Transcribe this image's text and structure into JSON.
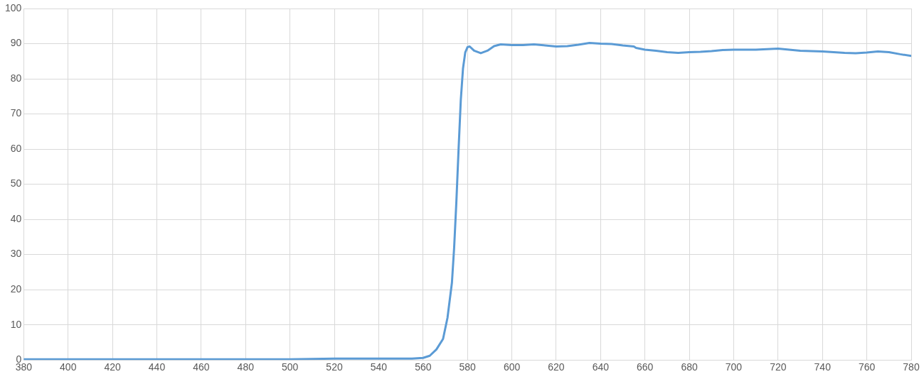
{
  "chart_data": {
    "type": "line",
    "xlim": [
      380,
      780
    ],
    "ylim": [
      0,
      100
    ],
    "xticks": [
      380,
      400,
      420,
      440,
      460,
      480,
      500,
      520,
      540,
      560,
      580,
      600,
      620,
      640,
      660,
      680,
      700,
      720,
      740,
      760,
      780
    ],
    "yticks": [
      0,
      10,
      20,
      30,
      40,
      50,
      60,
      70,
      80,
      90,
      100
    ],
    "grid": true,
    "marker": "none",
    "series": [
      {
        "color": "#5b9bd5",
        "x": [
          380,
          400,
          450,
          500,
          520,
          540,
          555,
          560,
          563,
          566,
          569,
          571,
          573,
          574,
          575,
          576,
          577,
          578,
          579,
          580,
          581,
          583,
          586,
          589,
          592,
          595,
          600,
          605,
          610,
          615,
          620,
          625,
          630,
          635,
          640,
          645,
          650,
          655,
          656,
          660,
          665,
          670,
          675,
          680,
          685,
          690,
          695,
          700,
          710,
          720,
          730,
          740,
          750,
          755,
          760,
          765,
          770,
          775,
          780
        ],
        "values": [
          0.2,
          0.2,
          0.2,
          0.2,
          0.4,
          0.4,
          0.4,
          0.6,
          1.2,
          3,
          6,
          12,
          22,
          32,
          45,
          60,
          74,
          83,
          87.5,
          89,
          89.2,
          88,
          87.3,
          88,
          89.3,
          89.8,
          89.6,
          89.6,
          89.8,
          89.5,
          89.2,
          89.3,
          89.7,
          90.2,
          90,
          89.9,
          89.5,
          89.2,
          88.8,
          88.3,
          88,
          87.6,
          87.4,
          87.6,
          87.7,
          87.9,
          88.2,
          88.3,
          88.3,
          88.6,
          88,
          87.8,
          87.4,
          87.3,
          87.5,
          87.8,
          87.6,
          87,
          86.5
        ]
      }
    ]
  }
}
